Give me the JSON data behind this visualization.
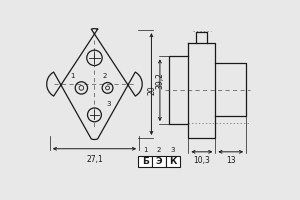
{
  "bg_color": "#e8e8e8",
  "line_color": "#1a1a1a",
  "dashed_color": "#666666",
  "dim_271_label": "27,1",
  "dim_392_label": "39,2",
  "dim_20_label": "20",
  "dim_103_label": "10,3",
  "dim_13_label": "13",
  "pin_labels": [
    "1",
    "2",
    "3"
  ],
  "pin_names": [
    "Б",
    "Э",
    "К"
  ],
  "font_size_dim": 5.5,
  "font_size_pin": 6.5,
  "font_size_num": 5.0
}
